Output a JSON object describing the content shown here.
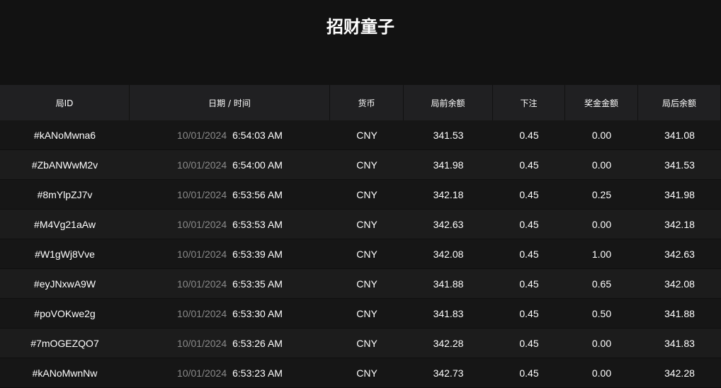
{
  "header": {
    "title": "招财童子"
  },
  "table": {
    "columns": [
      "局ID",
      "日期 / 时间",
      "货币",
      "局前余额",
      "下注",
      "奖金金额",
      "局后余额"
    ],
    "rows": [
      {
        "id": "#kANoMwna6",
        "date": "10/01/2024",
        "time": "6:54:03 AM",
        "currency": "CNY",
        "before": "341.53",
        "bet": "0.45",
        "win": "0.00",
        "after": "341.08"
      },
      {
        "id": "#ZbANWwM2v",
        "date": "10/01/2024",
        "time": "6:54:00 AM",
        "currency": "CNY",
        "before": "341.98",
        "bet": "0.45",
        "win": "0.00",
        "after": "341.53"
      },
      {
        "id": "#8mYlpZJ7v",
        "date": "10/01/2024",
        "time": "6:53:56 AM",
        "currency": "CNY",
        "before": "342.18",
        "bet": "0.45",
        "win": "0.25",
        "after": "341.98"
      },
      {
        "id": "#M4Vg21aAw",
        "date": "10/01/2024",
        "time": "6:53:53 AM",
        "currency": "CNY",
        "before": "342.63",
        "bet": "0.45",
        "win": "0.00",
        "after": "342.18"
      },
      {
        "id": "#W1gWj8Vve",
        "date": "10/01/2024",
        "time": "6:53:39 AM",
        "currency": "CNY",
        "before": "342.08",
        "bet": "0.45",
        "win": "1.00",
        "after": "342.63"
      },
      {
        "id": "#eyJNxwA9W",
        "date": "10/01/2024",
        "time": "6:53:35 AM",
        "currency": "CNY",
        "before": "341.88",
        "bet": "0.45",
        "win": "0.65",
        "after": "342.08"
      },
      {
        "id": "#poVOKwe2g",
        "date": "10/01/2024",
        "time": "6:53:30 AM",
        "currency": "CNY",
        "before": "341.83",
        "bet": "0.45",
        "win": "0.50",
        "after": "341.88"
      },
      {
        "id": "#7mOGEZQO7",
        "date": "10/01/2024",
        "time": "6:53:26 AM",
        "currency": "CNY",
        "before": "342.28",
        "bet": "0.45",
        "win": "0.00",
        "after": "341.83"
      },
      {
        "id": "#kANoMwnNw",
        "date": "10/01/2024",
        "time": "6:53:23 AM",
        "currency": "CNY",
        "before": "342.73",
        "bet": "0.45",
        "win": "0.00",
        "after": "342.28"
      }
    ]
  }
}
